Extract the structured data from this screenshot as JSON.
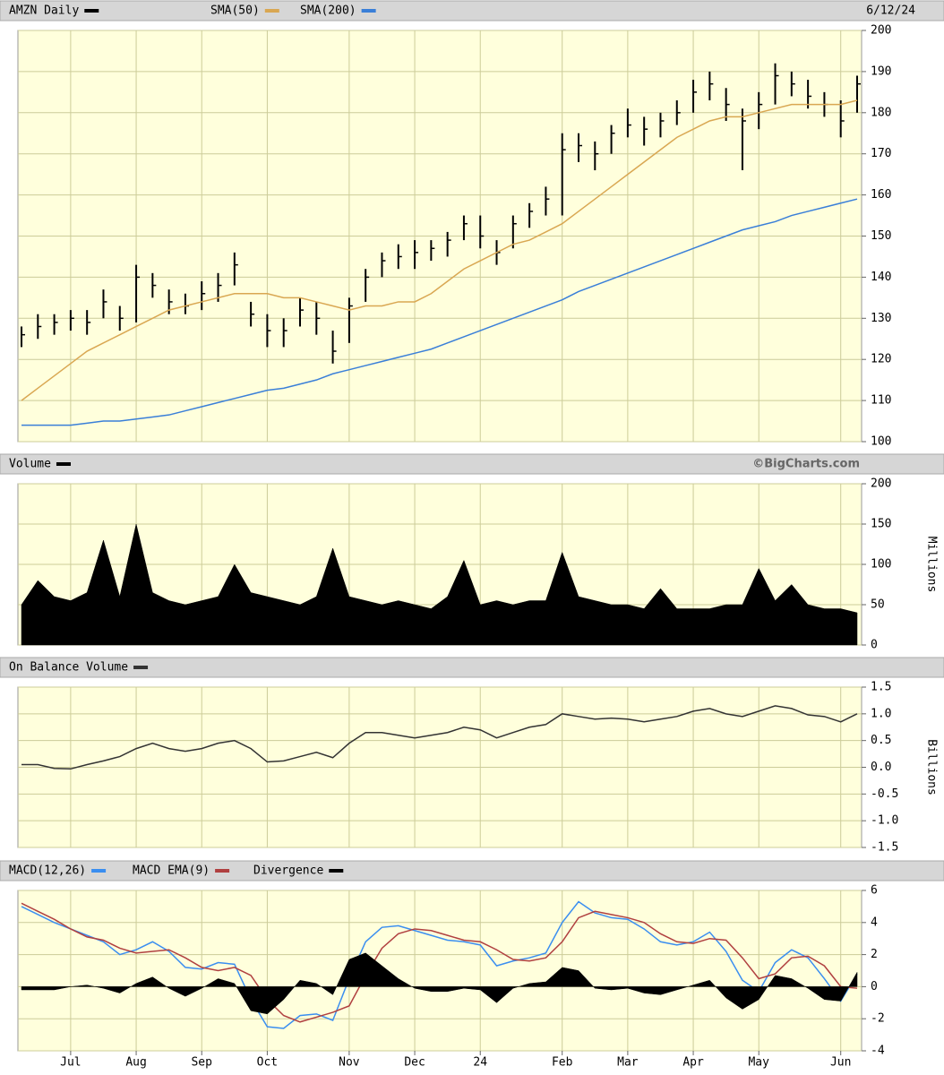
{
  "chart_data": [
    {
      "type": "line",
      "date": "6/12/24",
      "ylim": [
        100,
        200
      ],
      "yticks": [
        100,
        110,
        120,
        130,
        140,
        150,
        160,
        170,
        180,
        190,
        200
      ],
      "grid": true,
      "series": [
        {
          "name": "AMZN Daily",
          "color": "#000000",
          "style": "hlc",
          "high": [
            128,
            131,
            131,
            132,
            132,
            137,
            133,
            143,
            141,
            137,
            136,
            139,
            141,
            146,
            134,
            131,
            130,
            135,
            134,
            127,
            135,
            142,
            146,
            148,
            149,
            149,
            151,
            155,
            155,
            149,
            155,
            158,
            162,
            175,
            175,
            173,
            177,
            181,
            179,
            180,
            183,
            188,
            190,
            186,
            181,
            185,
            192,
            190,
            188,
            185,
            183,
            189
          ],
          "low": [
            123,
            125,
            126,
            127,
            126,
            130,
            127,
            129,
            135,
            131,
            131,
            132,
            134,
            138,
            128,
            123,
            123,
            128,
            126,
            119,
            124,
            134,
            140,
            142,
            142,
            144,
            145,
            149,
            147,
            143,
            147,
            152,
            155,
            155,
            168,
            166,
            170,
            174,
            172,
            174,
            177,
            180,
            183,
            178,
            166,
            176,
            182,
            184,
            181,
            179,
            174,
            180
          ],
          "close": [
            126,
            128,
            129,
            130,
            129,
            134,
            130,
            140,
            138,
            134,
            133,
            136,
            138,
            143,
            131,
            127,
            127,
            132,
            130,
            122,
            133,
            140,
            144,
            145,
            146,
            147,
            149,
            153,
            150,
            146,
            153,
            156,
            159,
            171,
            172,
            170,
            175,
            177,
            176,
            178,
            180,
            185,
            187,
            182,
            178,
            182,
            189,
            187,
            184,
            182,
            178,
            187
          ]
        },
        {
          "name": "SMA(50)",
          "color": "#d9a752",
          "values": [
            110,
            113,
            116,
            119,
            122,
            124,
            126,
            128,
            130,
            132,
            133,
            134,
            135,
            136,
            136,
            136,
            135,
            135,
            134,
            133,
            132,
            133,
            133,
            134,
            134,
            136,
            139,
            142,
            144,
            146,
            148,
            149,
            151,
            153,
            156,
            159,
            162,
            165,
            168,
            171,
            174,
            176,
            178,
            179,
            179,
            180,
            181,
            182,
            182,
            182,
            182,
            183
          ]
        },
        {
          "name": "SMA(200)",
          "color": "#3a7fd8",
          "values": [
            104,
            104,
            104,
            104,
            104.5,
            105,
            105,
            105.5,
            106,
            106.5,
            107.5,
            108.5,
            109.5,
            110.5,
            111.5,
            112.5,
            113,
            114,
            115,
            116.5,
            117.5,
            118.5,
            119.5,
            120.5,
            121.5,
            122.5,
            124,
            125.5,
            127,
            128.5,
            130,
            131.5,
            133,
            134.5,
            136.5,
            138,
            139.5,
            141,
            142.5,
            144,
            145.5,
            147,
            148.5,
            150,
            151.5,
            152.5,
            153.5,
            155,
            156,
            157,
            158,
            159
          ]
        }
      ]
    },
    {
      "type": "area",
      "watermark": "©BigCharts.com",
      "y_label": "Millions",
      "ylim": [
        0,
        200
      ],
      "yticks": [
        0,
        50,
        100,
        150,
        200
      ],
      "grid": true,
      "series": [
        {
          "name": "Volume",
          "color": "#000000",
          "values": [
            50,
            80,
            60,
            55,
            65,
            130,
            60,
            150,
            65,
            55,
            50,
            55,
            60,
            100,
            65,
            60,
            55,
            50,
            60,
            120,
            60,
            55,
            50,
            55,
            50,
            45,
            60,
            105,
            50,
            55,
            50,
            55,
            55,
            115,
            60,
            55,
            50,
            50,
            45,
            70,
            45,
            45,
            45,
            50,
            50,
            95,
            55,
            75,
            50,
            45,
            45,
            40
          ]
        }
      ]
    },
    {
      "type": "line",
      "y_label": "Billions",
      "ylim": [
        -1.5,
        1.5
      ],
      "yticks": [
        -1.5,
        {
          "value": -1,
          "label": "-1.0"
        },
        -0.5,
        {
          "value": 0,
          "label": "0.0"
        },
        0.5,
        {
          "value": 1,
          "label": "1.0"
        },
        1.5
      ],
      "grid": true,
      "series": [
        {
          "name": "On Balance Volume",
          "color": "#333333",
          "values": [
            0.05,
            0.05,
            -0.02,
            -0.03,
            0.05,
            0.12,
            0.2,
            0.35,
            0.45,
            0.35,
            0.3,
            0.35,
            0.45,
            0.5,
            0.35,
            0.1,
            0.12,
            0.2,
            0.28,
            0.18,
            0.45,
            0.65,
            0.65,
            0.6,
            0.55,
            0.6,
            0.65,
            0.75,
            0.7,
            0.55,
            0.65,
            0.75,
            0.8,
            1.0,
            0.95,
            0.9,
            0.92,
            0.9,
            0.85,
            0.9,
            0.95,
            1.05,
            1.1,
            1.0,
            0.95,
            1.05,
            1.15,
            1.1,
            0.98,
            0.95,
            0.85,
            1.0
          ]
        }
      ]
    },
    {
      "type": "line",
      "ylim": [
        -4,
        6
      ],
      "yticks": [
        -4,
        -2,
        0,
        2,
        4,
        6
      ],
      "grid": true,
      "categories": [
        null,
        null,
        null,
        "Jul",
        null,
        null,
        null,
        "Aug",
        null,
        null,
        null,
        "Sep",
        null,
        null,
        null,
        "Oct",
        null,
        null,
        null,
        null,
        "Nov",
        null,
        null,
        null,
        "Dec",
        null,
        null,
        null,
        "24",
        null,
        null,
        null,
        null,
        "Feb",
        null,
        null,
        null,
        "Mar",
        null,
        null,
        null,
        "Apr",
        null,
        null,
        null,
        "May",
        null,
        null,
        null,
        null,
        "Jun",
        null
      ],
      "series": [
        {
          "name": "MACD(12,26)",
          "color": "#3a8ef0",
          "values": [
            5,
            4.5,
            4,
            3.6,
            3.2,
            2.8,
            2,
            2.3,
            2.8,
            2.2,
            1.2,
            1.1,
            1.5,
            1.4,
            -0.8,
            -2.5,
            -2.6,
            -1.8,
            -1.7,
            -2.1,
            0.5,
            2.8,
            3.7,
            3.8,
            3.5,
            3.2,
            2.9,
            2.8,
            2.6,
            1.3,
            1.6,
            1.8,
            2.1,
            4,
            5.3,
            4.6,
            4.3,
            4.2,
            3.6,
            2.8,
            2.6,
            2.8,
            3.4,
            2.2,
            0.4,
            -0.3,
            1.5,
            2.3,
            1.8,
            0.5,
            -0.9,
            0.8
          ]
        },
        {
          "name": "MACD EMA(9)",
          "color": "#b04040",
          "values": [
            5.2,
            4.7,
            4.2,
            3.6,
            3.1,
            2.9,
            2.4,
            2.1,
            2.2,
            2.3,
            1.8,
            1.2,
            1,
            1.2,
            0.7,
            -0.8,
            -1.8,
            -2.2,
            -1.9,
            -1.6,
            -1.2,
            0.7,
            2.4,
            3.3,
            3.6,
            3.5,
            3.2,
            2.9,
            2.8,
            2.3,
            1.7,
            1.6,
            1.8,
            2.8,
            4.3,
            4.7,
            4.5,
            4.3,
            4,
            3.3,
            2.8,
            2.7,
            3,
            2.9,
            1.8,
            0.5,
            0.8,
            1.8,
            1.9,
            1.3,
            0,
            -0.1
          ]
        },
        {
          "name": "Divergence",
          "color": "#000000",
          "style": "area",
          "values": [
            -0.2,
            -0.2,
            -0.2,
            0,
            0.1,
            -0.1,
            -0.4,
            0.2,
            0.6,
            -0.1,
            -0.6,
            -0.1,
            0.5,
            0.2,
            -1.5,
            -1.7,
            -0.8,
            0.4,
            0.2,
            -0.5,
            1.7,
            2.1,
            1.3,
            0.5,
            -0.1,
            -0.3,
            -0.3,
            -0.1,
            -0.2,
            -1,
            -0.1,
            0.2,
            0.3,
            1.2,
            1,
            -0.1,
            -0.2,
            -0.1,
            -0.4,
            -0.5,
            -0.2,
            0.1,
            0.4,
            -0.7,
            -1.4,
            -0.8,
            0.7,
            0.5,
            -0.1,
            -0.8,
            -0.9,
            0.9
          ]
        }
      ]
    }
  ]
}
